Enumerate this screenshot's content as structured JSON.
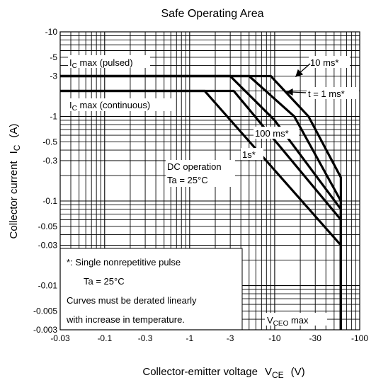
{
  "chart_data": {
    "type": "line",
    "title": "Safe Operating Area",
    "xlabel": {
      "main": "Collector-emitter voltage",
      "symbol": "V",
      "sub": "CE",
      "unit": "(V)"
    },
    "ylabel": {
      "main": "Collector current",
      "symbol": "I",
      "sub": "C",
      "unit": "(A)"
    },
    "x_scale": "log",
    "y_scale": "log",
    "xlim": [
      -0.03,
      -100
    ],
    "ylim": [
      -0.003,
      -10
    ],
    "x_ticks": [
      "-0.03",
      "-0.1",
      "-0.3",
      "-1",
      "-3",
      "-10",
      "-30",
      "-100"
    ],
    "y_ticks": [
      "-10",
      "-5",
      "-3",
      "-1",
      "-0.5",
      "-0.3",
      "-0.1",
      "-0.05",
      "-0.03",
      "-0.01",
      "-0.005",
      "-0.003"
    ],
    "grid": true,
    "series": [
      {
        "label_key": "dc",
        "points": [
          [
            -0.03,
            -2
          ],
          [
            -1.5,
            -2
          ],
          [
            -60,
            -0.03
          ],
          [
            -60,
            -0.003
          ]
        ]
      },
      {
        "label_key": "s1",
        "points": [
          [
            -0.03,
            -2
          ],
          [
            -1.5,
            -2
          ],
          [
            -3.3,
            -2
          ],
          [
            -60,
            -0.06
          ],
          [
            -60,
            -0.003
          ]
        ]
      },
      {
        "label_key": "ms100",
        "points": [
          [
            -0.03,
            -3
          ],
          [
            -3,
            -3
          ],
          [
            -10,
            -0.9
          ],
          [
            -60,
            -0.08
          ],
          [
            -60,
            -0.003
          ]
        ]
      },
      {
        "label_key": "ms10",
        "points": [
          [
            -0.03,
            -3
          ],
          [
            -5,
            -3
          ],
          [
            -17,
            -1.0
          ],
          [
            -60,
            -0.1
          ],
          [
            -60,
            -0.003
          ]
        ]
      },
      {
        "label_key": "ms1",
        "points": [
          [
            -0.03,
            -3
          ],
          [
            -9,
            -3
          ],
          [
            -25,
            -1.0
          ],
          [
            -60,
            -0.19
          ],
          [
            -60,
            -0.003
          ]
        ]
      }
    ],
    "annotations": {
      "ic_pulsed_main": "I",
      "ic_pulsed_sub": "C",
      "ic_pulsed_rest": " max (pulsed)",
      "ic_cont_main": "I",
      "ic_cont_sub": "C",
      "ic_cont_rest": " max (continuous)",
      "dc_line1": "DC operation",
      "dc_line2": "Ta = 25°C",
      "s1": "1s*",
      "ms100": "100 ms*",
      "ms10": "10 ms*",
      "ms1": "t = 1 ms*",
      "vceo_main": "V",
      "vceo_sub": "CEO",
      "vceo_rest": " max",
      "note_line1": "*:  Single nonrepetitive pulse",
      "note_line2": "Ta = 25°C",
      "note_line3": "Curves must be derated linearly",
      "note_line4": "with increase in temperature."
    }
  }
}
